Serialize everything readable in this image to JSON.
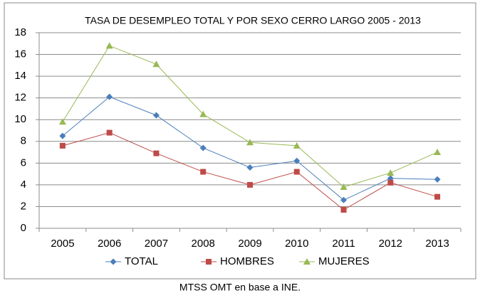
{
  "chart_data": {
    "type": "line",
    "title": "TASA DE DESEMPLEO TOTAL Y POR SEXO CERRO LARGO 2005 - 2013",
    "categories": [
      "2005",
      "2006",
      "2007",
      "2008",
      "2009",
      "2010",
      "2011",
      "2012",
      "2013"
    ],
    "series": [
      {
        "name": "TOTAL",
        "color": "#4a7ebb",
        "marker": "diamond",
        "values": [
          8.5,
          12.1,
          10.4,
          7.4,
          5.6,
          6.2,
          2.6,
          4.6,
          4.5
        ]
      },
      {
        "name": "HOMBRES",
        "color": "#be4b48",
        "marker": "square",
        "values": [
          7.6,
          8.8,
          6.9,
          5.2,
          4.0,
          5.2,
          1.7,
          4.2,
          2.9
        ]
      },
      {
        "name": "MUJERES",
        "color": "#98b954",
        "marker": "triangle",
        "values": [
          9.8,
          16.8,
          15.1,
          10.5,
          7.9,
          7.6,
          3.8,
          5.1,
          7.0
        ]
      }
    ],
    "ylim": [
      0,
      18
    ],
    "yticks": [
      0,
      2,
      4,
      6,
      8,
      10,
      12,
      14,
      16,
      18
    ],
    "grid": true,
    "legend": "bottom",
    "source": "MTSS  OMT  en base a INE."
  }
}
